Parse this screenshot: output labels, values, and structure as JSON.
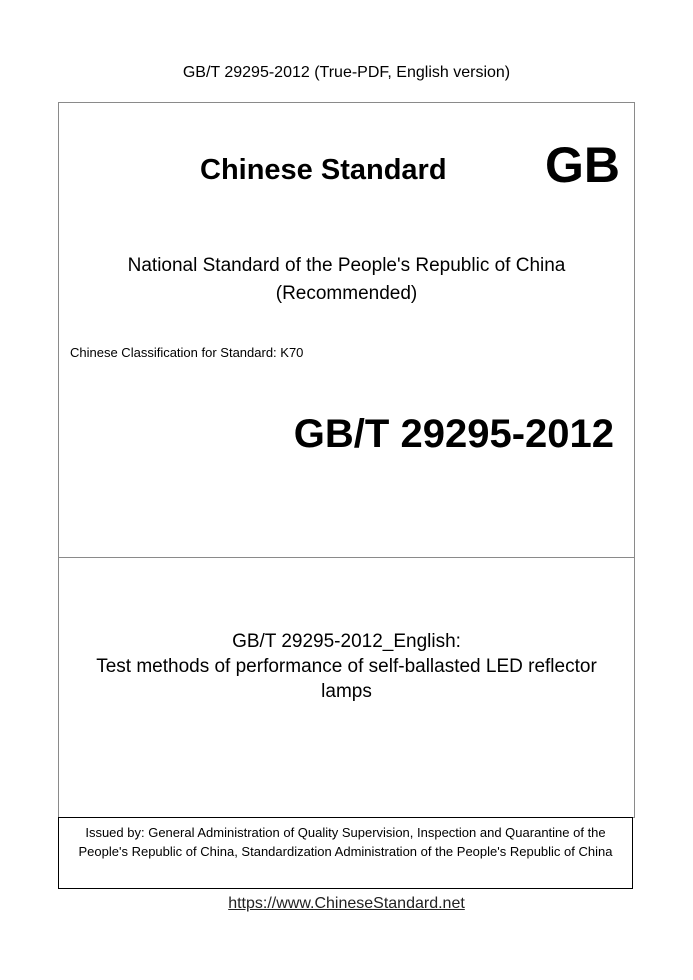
{
  "header": "GB/T 29295-2012 (True-PDF, English version)",
  "brand": {
    "title": "Chinese Standard",
    "mark": "GB"
  },
  "national": {
    "line1": "National Standard of the People's Republic of China",
    "line2": "(Recommended)"
  },
  "classification": "Chinese Classification for Standard: K70",
  "standard_number": "GB/T 29295-2012",
  "doc_title": {
    "line1": "GB/T 29295-2012_English:",
    "line2": "Test methods of performance of self-ballasted LED reflector",
    "line3": "lamps"
  },
  "issued_by": "Issued by: General Administration of Quality Supervision, Inspection and Quarantine of the People's Republic of China, Standardization Administration of the People's Republic of China",
  "footer_link": "https://www.ChineseStandard.net"
}
